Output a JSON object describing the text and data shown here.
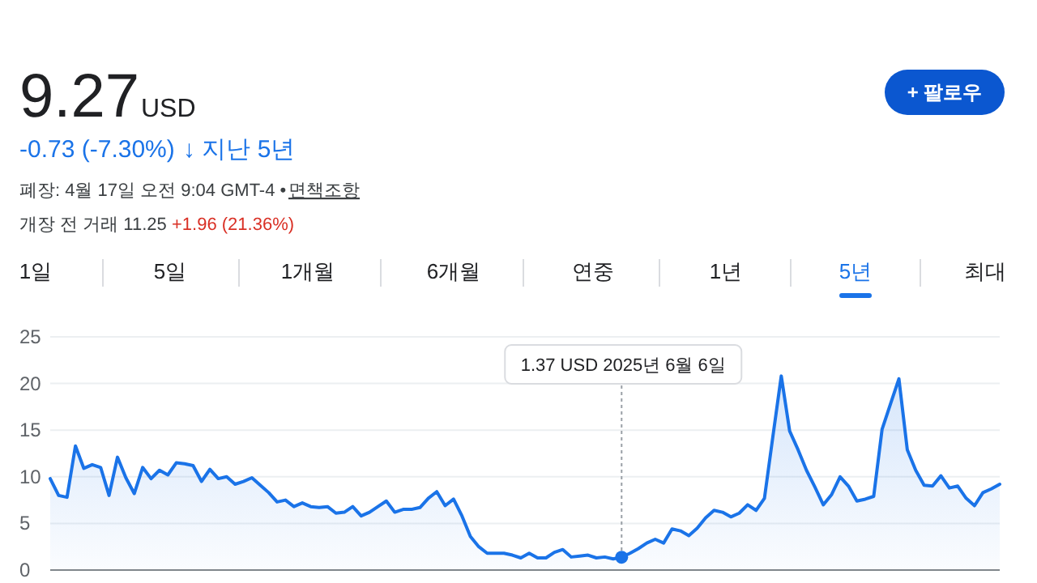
{
  "chart_data": {
    "type": "area",
    "categories": [
      null,
      null,
      null,
      null,
      null,
      null,
      null,
      null,
      null,
      null,
      null,
      null,
      null,
      null,
      null,
      null,
      null,
      null,
      null,
      null,
      null,
      null,
      null,
      null,
      null,
      null,
      null,
      null,
      null,
      null,
      null,
      null,
      null,
      null,
      null,
      null,
      null,
      null,
      null,
      null,
      null,
      null,
      null,
      null,
      null,
      null,
      null,
      null,
      null,
      null,
      null,
      null,
      null,
      null,
      null,
      null,
      null,
      null,
      null,
      null,
      null,
      null,
      null,
      null,
      null,
      null,
      null,
      null,
      null,
      null,
      null,
      null,
      null,
      null,
      null,
      null,
      null,
      null,
      null,
      null,
      null,
      null,
      null,
      null,
      null,
      null,
      null,
      null,
      null,
      null,
      null,
      null,
      null,
      null,
      null,
      null,
      null,
      null,
      null,
      null,
      null,
      null,
      null,
      null,
      null,
      null,
      null,
      null,
      null,
      null,
      null,
      null,
      null,
      null
    ],
    "series": [
      {
        "color": "#1a73e8",
        "values": [
          9.8,
          8.0,
          7.8,
          13.3,
          10.9,
          11.3,
          11.0,
          8.0,
          12.1,
          9.9,
          8.2,
          11.0,
          9.8,
          10.7,
          10.2,
          11.5,
          11.4,
          11.2,
          9.5,
          10.8,
          9.8,
          10.0,
          9.2,
          9.5,
          9.9,
          9.1,
          8.3,
          7.3,
          7.5,
          6.8,
          7.2,
          6.8,
          6.7,
          6.8,
          6.1,
          6.2,
          6.8,
          5.8,
          6.2,
          6.8,
          7.4,
          6.2,
          6.5,
          6.5,
          6.7,
          7.7,
          8.4,
          6.9,
          7.6,
          5.8,
          3.6,
          2.5,
          1.8,
          1.8,
          1.8,
          1.6,
          1.3,
          1.8,
          1.3,
          1.3,
          1.9,
          2.2,
          1.4,
          1.5,
          1.6,
          1.3,
          1.4,
          1.2,
          1.37,
          1.8,
          2.3,
          2.9,
          3.3,
          2.9,
          4.4,
          4.2,
          3.7,
          4.5,
          5.6,
          6.4,
          6.2,
          5.7,
          6.1,
          7.0,
          6.4,
          7.7,
          14.3,
          20.8,
          14.9,
          12.9,
          10.7,
          8.9,
          7.0,
          8.1,
          10.0,
          9.0,
          7.4,
          7.6,
          7.9,
          15.1,
          17.8,
          20.5,
          12.9,
          10.7,
          9.1,
          9.0,
          10.1,
          8.8,
          9.0,
          7.7,
          6.9,
          8.3,
          8.7,
          9.2
        ]
      }
    ],
    "ylim": [
      0,
      25
    ],
    "yticks": [
      0,
      5,
      10,
      15,
      20,
      25
    ],
    "grid": "y",
    "tick_labels": "y",
    "annotations": [
      "9.27",
      "USD",
      "-0.73 (-7.30%)",
      "↓ 지난 5년",
      "폐장: 4월 17일 오전 9:04 GMT-4 •",
      "면책조항",
      "개장 전 거래 11.25",
      "+1.96 (21.36%)",
      "+ 팔로우",
      "1일",
      "5일",
      "1개월",
      "6개월",
      "연중",
      "1년",
      "5년",
      "최대",
      {
        "text": "1.37 USD  2025년 6월 6일",
        "y": 1.37
      }
    ]
  }
}
